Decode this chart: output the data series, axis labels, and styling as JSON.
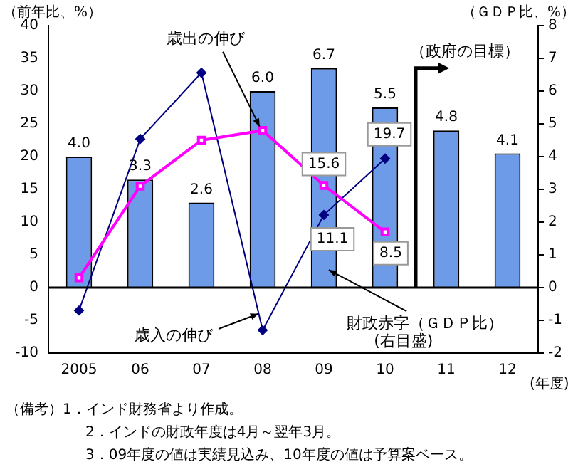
{
  "chart_data": {
    "type": "bar",
    "categories": [
      "2005",
      "06",
      "07",
      "08",
      "09",
      "10",
      "11",
      "12"
    ],
    "xlabel": "(年度)",
    "ylabel": "（前年比、%）",
    "y2label": "（ＧＤＰ比、%）",
    "series": [
      {
        "axis": "y2",
        "color": "#6d9be8",
        "values": [
          4.0,
          3.3,
          2.6,
          6.0,
          6.7,
          5.5,
          4.8,
          4.1
        ],
        "value_labels": [
          "4.0",
          "3.3",
          "2.6",
          "6.0",
          "6.7",
          "5.5",
          "4.8",
          "4.1"
        ]
      },
      {
        "type": "line",
        "color": "#ff00ff",
        "marker": "square",
        "values": [
          1.5,
          15.5,
          22.5,
          24,
          15.6,
          8.5,
          null,
          null
        ],
        "value_labels": [
          null,
          null,
          null,
          null,
          "15.6",
          "8.5",
          null,
          null
        ]
      },
      {
        "type": "line",
        "color": "#000080",
        "marker": "diamond",
        "values": [
          -3.5,
          22.7,
          32.8,
          -6.5,
          11.1,
          19.7,
          null,
          null
        ],
        "value_labels": [
          null,
          null,
          null,
          null,
          "11.1",
          "19.7",
          null,
          null
        ]
      }
    ],
    "ylim": [
      -10,
      40
    ],
    "yticks": [
      -10,
      -5,
      0,
      5,
      10,
      15,
      20,
      25,
      30,
      35,
      40
    ],
    "y2lim": [
      -2,
      8
    ],
    "y2ticks": [
      -2,
      -1,
      0,
      1,
      2,
      3,
      4,
      5,
      6,
      7,
      8
    ],
    "grid": false,
    "legend": false,
    "ref_lines": [
      {
        "axis": "y",
        "value": 0,
        "color": "#000000"
      }
    ],
    "annotations": [
      {
        "text": "歳出の伸び",
        "x": "08",
        "y": 24
      },
      {
        "text": "歳入の伸び",
        "x": "08",
        "y": -4
      },
      "財政赤字（ＧＤＰ比）",
      "(右目盛)",
      "（政府の目標）",
      "（備考）1．インド財務省より作成。",
      "2．インドの財政年度は4月～翌年3月。",
      "3．09年度の値は実績見込み、10年度の値は予算案ベース。"
    ]
  }
}
